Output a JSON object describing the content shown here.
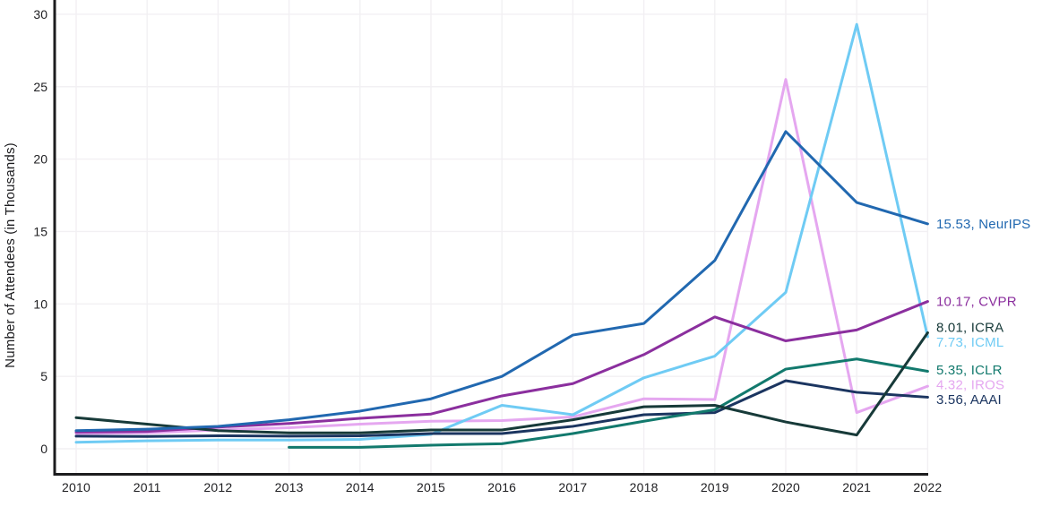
{
  "chart_data": {
    "type": "line",
    "title": "",
    "ylabel": "Number of Attendees (in Thousands)",
    "xlabel": "",
    "x": [
      2010,
      2011,
      2012,
      2013,
      2014,
      2015,
      2016,
      2017,
      2018,
      2019,
      2020,
      2021,
      2022
    ],
    "x_tick_labels": [
      "2010",
      "2011",
      "2012",
      "2013",
      "2014",
      "2015",
      "2016",
      "2017",
      "2018",
      "2019",
      "2020",
      "2021",
      "2022"
    ],
    "y_ticks": [
      0,
      5,
      10,
      15,
      20,
      25,
      30
    ],
    "y_tick_labels": [
      "0",
      "5",
      "10",
      "15",
      "20",
      "25",
      "30"
    ],
    "ylim": [
      0,
      31
    ],
    "grid": true,
    "legend_position": "right-end-labels",
    "series": [
      {
        "name": "IROS",
        "color": "#e5a7f0",
        "end_label": "4.32, IROS",
        "values": [
          1.05,
          1.1,
          1.3,
          1.45,
          1.7,
          1.9,
          1.95,
          2.2,
          3.45,
          3.4,
          25.5,
          2.5,
          4.32
        ]
      },
      {
        "name": "ICML",
        "color": "#6fcbf4",
        "end_label": "7.73, ICML",
        "values": [
          0.45,
          0.55,
          0.6,
          0.6,
          0.65,
          1.0,
          3.0,
          2.35,
          4.9,
          6.4,
          10.8,
          29.3,
          7.73
        ]
      },
      {
        "name": "CVPR",
        "color": "#8b2f9e",
        "end_label": "10.17, CVPR",
        "values": [
          1.15,
          1.2,
          1.5,
          1.75,
          2.1,
          2.4,
          3.65,
          4.5,
          6.5,
          9.1,
          7.45,
          8.2,
          10.17
        ]
      },
      {
        "name": "AAAI",
        "color": "#1b3560",
        "end_label": "3.56, AAAI",
        "values": [
          0.87,
          0.85,
          0.9,
          0.87,
          0.9,
          1.05,
          1.05,
          1.55,
          2.35,
          2.5,
          4.7,
          3.9,
          3.56
        ]
      },
      {
        "name": "ICLR",
        "color": "#12796d",
        "end_label": "5.35, ICLR",
        "values": [
          null,
          null,
          null,
          0.1,
          0.1,
          0.25,
          0.35,
          1.05,
          1.9,
          2.7,
          5.5,
          6.2,
          5.35
        ]
      },
      {
        "name": "ICRA",
        "color": "#173a39",
        "end_label": "8.01, ICRA",
        "values": [
          2.15,
          1.7,
          1.25,
          1.1,
          1.1,
          1.3,
          1.3,
          2.0,
          2.9,
          3.0,
          1.85,
          0.95,
          8.01
        ]
      },
      {
        "name": "NeurIPS",
        "color": "#2168b0",
        "end_label": "15.53, NeurIPS",
        "values": [
          1.25,
          1.35,
          1.55,
          2.0,
          2.6,
          3.45,
          5.0,
          7.85,
          8.65,
          13.0,
          21.9,
          17.0,
          15.53
        ]
      }
    ]
  },
  "colors": {
    "axis": "#1c1c1e",
    "grid": "#f2f0f3",
    "tick_text": "#1e1e21",
    "background": "#ffffff"
  }
}
